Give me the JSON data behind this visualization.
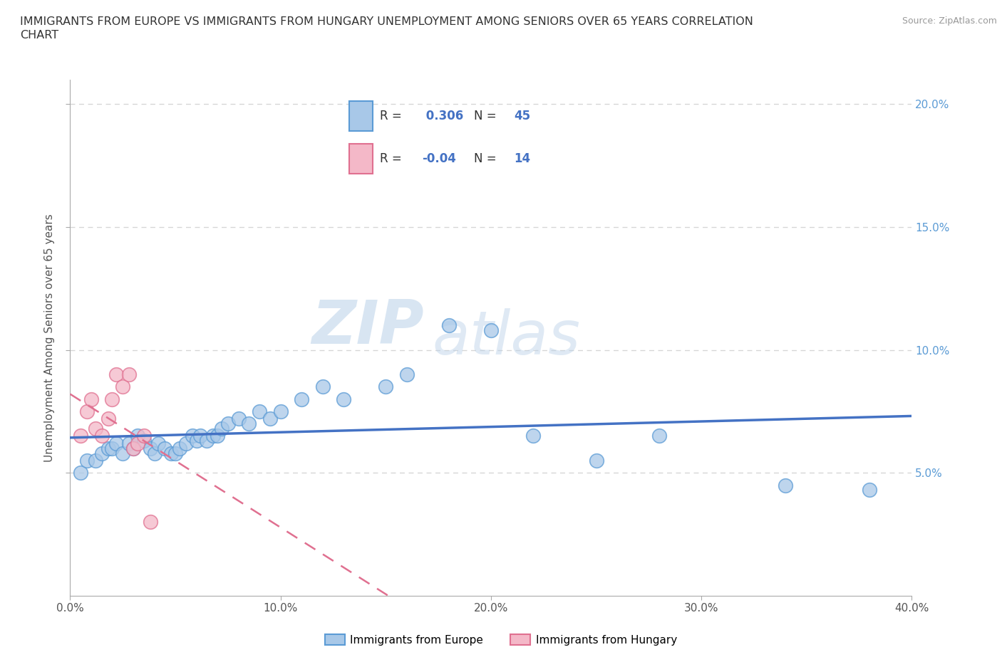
{
  "title_line1": "IMMIGRANTS FROM EUROPE VS IMMIGRANTS FROM HUNGARY UNEMPLOYMENT AMONG SENIORS OVER 65 YEARS CORRELATION",
  "title_line2": "CHART",
  "source": "Source: ZipAtlas.com",
  "ylabel": "Unemployment Among Seniors over 65 years",
  "xlim": [
    0.0,
    0.4
  ],
  "ylim": [
    0.0,
    0.21
  ],
  "yticks": [
    0.05,
    0.1,
    0.15,
    0.2
  ],
  "ytick_labels": [
    "5.0%",
    "10.0%",
    "15.0%",
    "20.0%"
  ],
  "xticks": [
    0.0,
    0.1,
    0.2,
    0.3,
    0.4
  ],
  "xtick_labels": [
    "0.0%",
    "10.0%",
    "20.0%",
    "30.0%",
    "40.0%"
  ],
  "europe_color": "#a8c8e8",
  "europe_edge_color": "#5b9bd5",
  "hungary_color": "#f4b8c8",
  "hungary_edge_color": "#e07090",
  "europe_line_color": "#4472c4",
  "hungary_line_color": "#e07090",
  "europe_R": 0.306,
  "europe_N": 45,
  "hungary_R": -0.04,
  "hungary_N": 14,
  "europe_x": [
    0.005,
    0.008,
    0.012,
    0.015,
    0.018,
    0.02,
    0.022,
    0.025,
    0.028,
    0.03,
    0.032,
    0.035,
    0.038,
    0.04,
    0.042,
    0.045,
    0.048,
    0.05,
    0.052,
    0.055,
    0.058,
    0.06,
    0.062,
    0.065,
    0.068,
    0.07,
    0.072,
    0.075,
    0.08,
    0.085,
    0.09,
    0.095,
    0.1,
    0.11,
    0.12,
    0.13,
    0.15,
    0.16,
    0.18,
    0.2,
    0.22,
    0.25,
    0.28,
    0.34,
    0.38
  ],
  "europe_y": [
    0.05,
    0.055,
    0.055,
    0.058,
    0.06,
    0.06,
    0.062,
    0.058,
    0.062,
    0.06,
    0.065,
    0.063,
    0.06,
    0.058,
    0.062,
    0.06,
    0.058,
    0.058,
    0.06,
    0.062,
    0.065,
    0.063,
    0.065,
    0.063,
    0.065,
    0.065,
    0.068,
    0.07,
    0.072,
    0.07,
    0.075,
    0.072,
    0.075,
    0.08,
    0.085,
    0.08,
    0.085,
    0.09,
    0.11,
    0.108,
    0.065,
    0.055,
    0.065,
    0.045,
    0.043
  ],
  "hungary_x": [
    0.005,
    0.008,
    0.01,
    0.012,
    0.015,
    0.018,
    0.02,
    0.022,
    0.025,
    0.028,
    0.03,
    0.032,
    0.035,
    0.038
  ],
  "hungary_y": [
    0.065,
    0.075,
    0.08,
    0.068,
    0.065,
    0.072,
    0.08,
    0.09,
    0.085,
    0.09,
    0.06,
    0.062,
    0.065,
    0.03
  ],
  "watermark_zip": "ZIP",
  "watermark_atlas": "atlas",
  "background_color": "#ffffff",
  "grid_color": "#cccccc",
  "right_tick_color": "#5b9bd5",
  "title_color": "#333333"
}
